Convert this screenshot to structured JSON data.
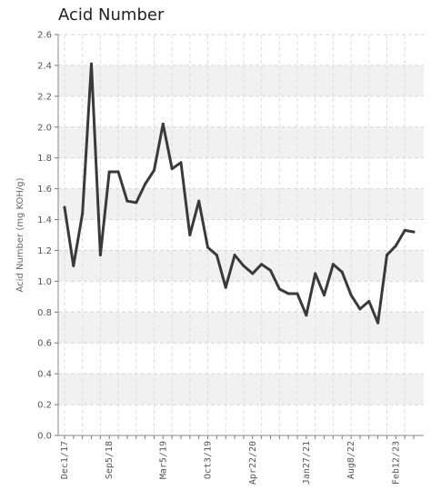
{
  "chart_data": {
    "type": "line",
    "title": "Acid Number",
    "xlabel": "",
    "ylabel": "Acid Number (mg KOH/g)",
    "ylim": [
      0,
      2.6
    ],
    "y_ticks": [
      "0.0",
      "0.2",
      "0.4",
      "0.6",
      "0.8",
      "1.0",
      "1.2",
      "1.4",
      "1.6",
      "1.8",
      "2.0",
      "2.2",
      "2.4",
      "2.6"
    ],
    "x_tick_labels": [
      "Dec1/17",
      "Sep5/18",
      "Mar5/19",
      "Oct3/19",
      "Apr22/20",
      "Jan27/21",
      "Aug8/22",
      "Feb12/23"
    ],
    "grid": true,
    "line_color": "#3a3a3a",
    "band_color": "#f1f1f1",
    "series": [
      {
        "values": [
          1.48,
          1.1,
          1.44,
          2.41,
          1.17,
          1.71,
          1.71,
          1.52,
          1.51,
          1.63,
          1.72,
          2.02,
          1.73,
          1.77,
          1.3,
          1.52,
          1.22,
          1.17,
          0.96,
          1.17,
          1.1,
          1.05,
          1.11,
          1.07,
          0.95,
          0.92,
          0.92,
          0.78,
          1.05,
          0.91,
          1.11,
          1.06,
          0.91,
          0.82,
          0.87,
          0.73,
          1.17,
          1.23,
          1.33,
          1.32
        ]
      }
    ]
  }
}
